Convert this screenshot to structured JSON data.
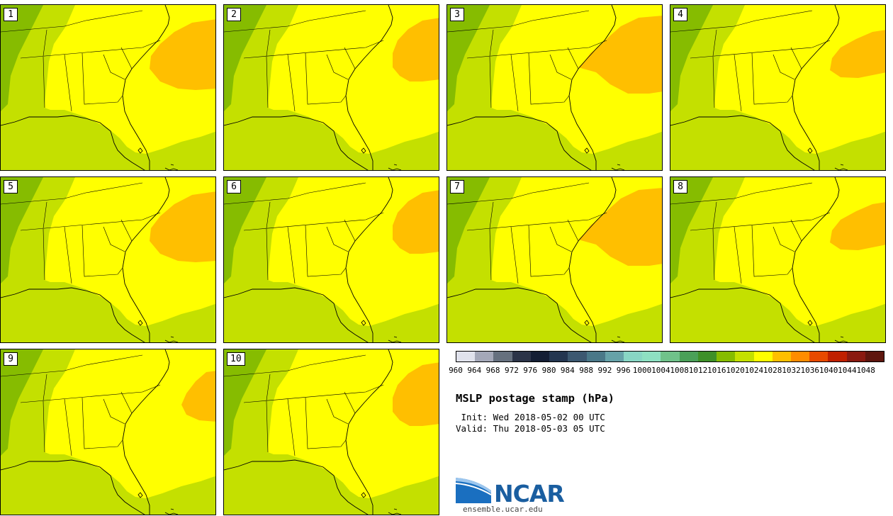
{
  "members": [
    {
      "label": "1",
      "hi": "a"
    },
    {
      "label": "2",
      "hi": "b"
    },
    {
      "label": "3",
      "hi": "c"
    },
    {
      "label": "4",
      "hi": "d"
    },
    {
      "label": "5",
      "hi": "a"
    },
    {
      "label": "6",
      "hi": "b"
    },
    {
      "label": "7",
      "hi": "c"
    },
    {
      "label": "8",
      "hi": "d"
    },
    {
      "label": "9",
      "hi": "e"
    },
    {
      "label": "10",
      "hi": "b"
    }
  ],
  "colorbar": {
    "ticks": [
      "960",
      "964",
      "968",
      "972",
      "976",
      "980",
      "984",
      "988",
      "992",
      "996",
      "1000",
      "1004",
      "1008",
      "1012",
      "1016",
      "1020",
      "1024",
      "1028",
      "1032",
      "1036",
      "1040",
      "1044",
      "1048"
    ],
    "colors": [
      "#e0e2ec",
      "#a4a8b8",
      "#66707e",
      "#2c3448",
      "#141e34",
      "#243650",
      "#3c5870",
      "#4a7888",
      "#66a2a8",
      "#88d6c4",
      "#8ee0c2",
      "#70c28a",
      "#4aa058",
      "#3e9028",
      "#86bc00",
      "#c4e000",
      "#ffff00",
      "#ffbf00",
      "#ff8c00",
      "#e84a00",
      "#c02000",
      "#8a1a10",
      "#5e160e"
    ]
  },
  "map_colors": {
    "c1016": "#86bc00",
    "c1020": "#c4e000",
    "c1024": "#ffff00",
    "c1028": "#ffbf00",
    "border": "#000000"
  },
  "title": "MSLP postage stamp (hPa)",
  "init": " Init: Wed 2018-05-02 00 UTC",
  "valid": "Valid: Thu 2018-05-03 05 UTC",
  "logo": {
    "text": "NCAR",
    "url": "ensemble.ucar.edu"
  }
}
